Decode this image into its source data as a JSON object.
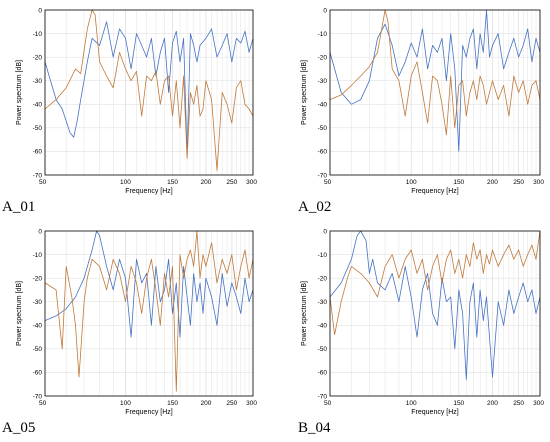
{
  "colors": {
    "series1": "#4472c4",
    "series2": "#c0793a",
    "grid": "#e2e2e2",
    "axis": "#000000"
  },
  "chart_data": [
    {
      "type": "line",
      "panel_label": "A_01",
      "xlabel": "Frequency [Hz]",
      "ylabel": "Power spectrum [dB]",
      "xscale": "log",
      "xlim": [
        50,
        300
      ],
      "ylim": [
        -70,
        0
      ],
      "xticks": [
        50,
        100,
        150,
        200,
        250,
        300
      ],
      "yticks": [
        0,
        -10,
        -20,
        -30,
        -40,
        -50,
        -60,
        -70
      ],
      "grid": true,
      "series": [
        {
          "x": [
            50,
            55,
            58,
            62,
            64,
            66,
            68,
            72,
            75,
            80,
            85,
            90,
            95,
            100,
            105,
            110,
            115,
            120,
            125,
            130,
            135,
            140,
            145,
            150,
            155,
            160,
            165,
            170,
            175,
            180,
            185,
            190,
            200,
            210,
            220,
            230,
            240,
            250,
            260,
            270,
            280,
            290,
            300
          ],
          "y": [
            -22,
            -38,
            -42,
            -52,
            -54,
            -47,
            -38,
            -22,
            -12,
            -15,
            -5,
            -20,
            -8,
            -12,
            -25,
            -10,
            -15,
            -20,
            -12,
            -28,
            -18,
            -12,
            -35,
            -14,
            -9,
            -22,
            -12,
            -62,
            -10,
            -15,
            -22,
            -15,
            -12,
            -8,
            -20,
            -15,
            -10,
            -22,
            -12,
            -14,
            -9,
            -18,
            -12
          ]
        },
        {
          "x": [
            50,
            55,
            60,
            65,
            68,
            72,
            75,
            77,
            80,
            85,
            90,
            95,
            100,
            105,
            110,
            115,
            120,
            125,
            130,
            135,
            140,
            145,
            150,
            155,
            160,
            165,
            170,
            175,
            180,
            185,
            190,
            195,
            200,
            210,
            220,
            230,
            240,
            250,
            260,
            270,
            280,
            290,
            300
          ],
          "y": [
            -42,
            -38,
            -33,
            -25,
            -27,
            -8,
            0,
            -2,
            -22,
            -28,
            -33,
            -18,
            -25,
            -30,
            -26,
            -45,
            -28,
            -30,
            -26,
            -40,
            -30,
            -28,
            -45,
            -30,
            -50,
            -28,
            -63,
            -35,
            -40,
            -32,
            -45,
            -42,
            -30,
            -38,
            -68,
            -35,
            -40,
            -48,
            -33,
            -30,
            -40,
            -42,
            -45
          ]
        }
      ]
    },
    {
      "type": "line",
      "panel_label": "A_02",
      "xlabel": "Frequency [Hz]",
      "ylabel": "Power spectrum [dB]",
      "xscale": "log",
      "xlim": [
        50,
        300
      ],
      "ylim": [
        -70,
        0
      ],
      "xticks": [
        50,
        100,
        150,
        200,
        250,
        300
      ],
      "yticks": [
        0,
        -10,
        -20,
        -30,
        -40,
        -50,
        -60,
        -70
      ],
      "grid": true,
      "series": [
        {
          "x": [
            50,
            55,
            60,
            65,
            70,
            75,
            80,
            85,
            90,
            95,
            100,
            105,
            110,
            115,
            120,
            125,
            130,
            135,
            140,
            145,
            150,
            155,
            160,
            165,
            170,
            175,
            180,
            185,
            190,
            195,
            200,
            210,
            220,
            230,
            240,
            250,
            260,
            270,
            280,
            290,
            300
          ],
          "y": [
            -18,
            -35,
            -40,
            -38,
            -30,
            -12,
            -6,
            -15,
            -28,
            -22,
            -14,
            -20,
            -8,
            -25,
            -15,
            -18,
            -12,
            -30,
            -10,
            -25,
            -60,
            -15,
            -20,
            -12,
            -8,
            -25,
            -10,
            -18,
            0,
            -20,
            -15,
            -10,
            -25,
            -18,
            -12,
            -20,
            -15,
            -8,
            -22,
            -12,
            -18
          ]
        },
        {
          "x": [
            50,
            55,
            60,
            65,
            70,
            75,
            80,
            82,
            85,
            90,
            95,
            100,
            105,
            110,
            115,
            120,
            125,
            130,
            135,
            140,
            145,
            150,
            155,
            160,
            165,
            170,
            175,
            180,
            185,
            190,
            195,
            200,
            210,
            220,
            230,
            240,
            250,
            260,
            270,
            280,
            290,
            300
          ],
          "y": [
            -38,
            -36,
            -32,
            -28,
            -24,
            -18,
            0,
            -5,
            -25,
            -30,
            -45,
            -28,
            -22,
            -35,
            -48,
            -28,
            -30,
            -40,
            -53,
            -28,
            -50,
            -32,
            -30,
            -45,
            -35,
            -30,
            -38,
            -28,
            -32,
            -40,
            -35,
            -30,
            -38,
            -32,
            -45,
            -28,
            -35,
            -30,
            -40,
            -32,
            -30,
            -38
          ]
        }
      ]
    },
    {
      "type": "line",
      "panel_label": "A_05",
      "xlabel": "Frequency [Hz]",
      "ylabel": "Power spectrum [dB]",
      "xscale": "log",
      "xlim": [
        50,
        300
      ],
      "ylim": [
        -70,
        0
      ],
      "xticks": [
        50,
        100,
        150,
        200,
        250,
        300
      ],
      "yticks": [
        0,
        -10,
        -20,
        -30,
        -40,
        -50,
        -60,
        -70
      ],
      "grid": true,
      "series": [
        {
          "x": [
            50,
            55,
            60,
            65,
            70,
            75,
            78,
            80,
            85,
            90,
            95,
            100,
            105,
            110,
            115,
            120,
            125,
            130,
            135,
            140,
            145,
            150,
            155,
            160,
            165,
            170,
            175,
            180,
            185,
            190,
            195,
            200,
            210,
            220,
            230,
            240,
            250,
            260,
            270,
            280,
            290,
            300
          ],
          "y": [
            -38,
            -36,
            -33,
            -28,
            -20,
            -8,
            0,
            -2,
            -15,
            -25,
            -12,
            -20,
            -45,
            -12,
            -22,
            -18,
            -40,
            -15,
            -30,
            -25,
            -12,
            -35,
            -22,
            -45,
            -15,
            -28,
            -40,
            -18,
            -30,
            -22,
            -35,
            -20,
            -28,
            -40,
            -18,
            -32,
            -22,
            -28,
            -35,
            -20,
            -30,
            -25
          ]
        },
        {
          "x": [
            50,
            55,
            58,
            60,
            63,
            65,
            67,
            70,
            72,
            75,
            80,
            85,
            90,
            95,
            100,
            105,
            110,
            115,
            120,
            125,
            130,
            135,
            140,
            145,
            150,
            155,
            160,
            165,
            170,
            175,
            180,
            185,
            190,
            195,
            200,
            210,
            220,
            230,
            240,
            250,
            260,
            270,
            280,
            290,
            300
          ],
          "y": [
            -22,
            -25,
            -50,
            -15,
            -28,
            -40,
            -62,
            -30,
            -20,
            -12,
            -15,
            -25,
            -12,
            -18,
            -30,
            -15,
            -22,
            -35,
            -20,
            -12,
            -25,
            -40,
            -18,
            -28,
            -15,
            -68,
            -10,
            -20,
            -12,
            -8,
            -15,
            0,
            -20,
            -10,
            -15,
            -5,
            -22,
            -12,
            -18,
            -10,
            -25,
            -15,
            -8,
            -20,
            -12
          ]
        }
      ]
    },
    {
      "type": "line",
      "panel_label": "B_04",
      "xlabel": "Frequency [Hz]",
      "ylabel": "Power spectrum [dB]",
      "xscale": "log",
      "xlim": [
        50,
        300
      ],
      "ylim": [
        -70,
        0
      ],
      "xticks": [
        50,
        100,
        150,
        200,
        250,
        300
      ],
      "yticks": [
        0,
        -10,
        -20,
        -30,
        -40,
        -50,
        -60,
        -70
      ],
      "grid": true,
      "series": [
        {
          "x": [
            50,
            55,
            60,
            63,
            65,
            68,
            70,
            72,
            75,
            80,
            85,
            90,
            95,
            100,
            105,
            110,
            115,
            120,
            125,
            130,
            135,
            140,
            145,
            150,
            155,
            160,
            165,
            170,
            175,
            180,
            185,
            190,
            195,
            200,
            210,
            220,
            230,
            240,
            250,
            260,
            270,
            280,
            290,
            300
          ],
          "y": [
            -28,
            -22,
            -12,
            -2,
            0,
            -4,
            -18,
            -12,
            -22,
            -25,
            -18,
            -30,
            -15,
            -28,
            -45,
            -25,
            -18,
            -35,
            -40,
            -20,
            -30,
            -28,
            -50,
            -25,
            -35,
            -63,
            -30,
            -22,
            -45,
            -25,
            -38,
            -28,
            -45,
            -62,
            -30,
            -40,
            -25,
            -35,
            -28,
            -22,
            -30,
            -25,
            -35,
            -28
          ]
        },
        {
          "x": [
            50,
            52,
            55,
            58,
            60,
            65,
            70,
            75,
            80,
            85,
            90,
            95,
            100,
            105,
            110,
            115,
            120,
            125,
            130,
            135,
            140,
            145,
            150,
            155,
            160,
            165,
            170,
            175,
            180,
            185,
            190,
            195,
            200,
            210,
            220,
            230,
            240,
            250,
            260,
            270,
            280,
            290,
            300
          ],
          "y": [
            -28,
            -44,
            -30,
            -20,
            -15,
            -18,
            -22,
            -28,
            -15,
            -10,
            -20,
            -12,
            -8,
            -18,
            -12,
            -25,
            -15,
            -10,
            -22,
            -12,
            -8,
            -18,
            -12,
            -20,
            -10,
            -15,
            -5,
            -12,
            -8,
            -18,
            -10,
            -14,
            -8,
            -15,
            -10,
            -6,
            -12,
            -8,
            -15,
            -10,
            -6,
            -12,
            0
          ]
        }
      ]
    }
  ]
}
